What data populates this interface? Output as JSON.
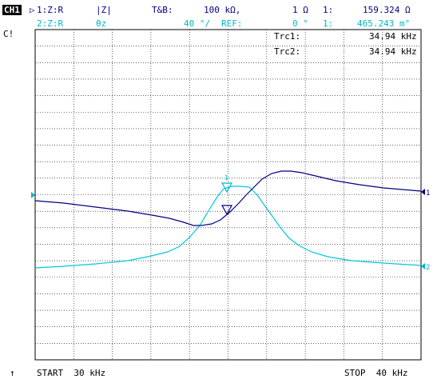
{
  "channel": {
    "badge": "CH1",
    "status_mark": "C!"
  },
  "trace1": {
    "arrow": "▷",
    "label": "1:Z:R",
    "format": "|Z|",
    "scale_label": "T&B:",
    "scale_value": "100 kΩ,",
    "ref_value": "1 Ω",
    "marker_label": "1:",
    "marker_value": "159.324 Ω",
    "end_tag": "1"
  },
  "trace2": {
    "label": "2:Z:R",
    "format": "θz",
    "scale_value": "40 °/",
    "ref_label": "REF:",
    "ref_value": "0 °",
    "marker_label": "1:",
    "marker_value": "465.243 m°",
    "end_tag": "2"
  },
  "marker_readout": [
    {
      "label": "Trc1:",
      "value": "34.94 kHz"
    },
    {
      "label": "Trc2:",
      "value": "34.94 kHz"
    }
  ],
  "marker_tag": "1",
  "footer": {
    "arrow": "↑",
    "start": "START  30 kHz",
    "stop": "STOP  40 kHz"
  },
  "colors": {
    "trace1": "#000080",
    "trace2": "#00c8d8",
    "grid": "#000000",
    "background": "#ffffff"
  }
}
